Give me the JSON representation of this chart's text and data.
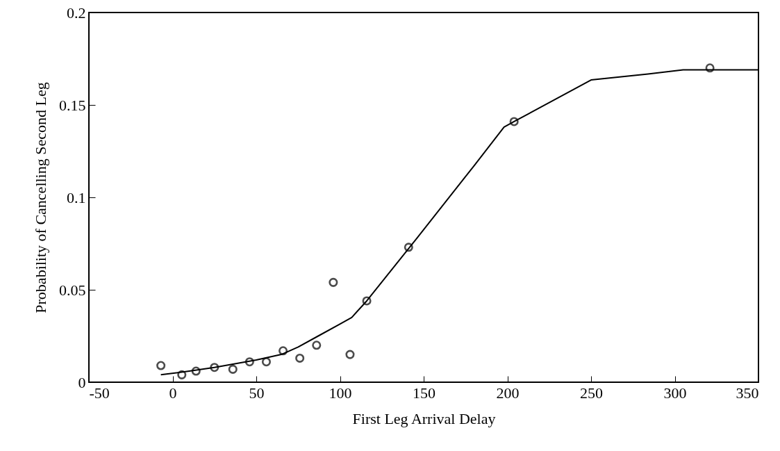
{
  "chart_data": {
    "type": "scatter",
    "xlabel": "First Leg Arrival Delay",
    "ylabel": "Probability of Cancelling Second Leg",
    "xlim": [
      -50,
      350
    ],
    "xticks": [
      -50,
      0,
      50,
      100,
      150,
      200,
      250,
      300,
      350
    ],
    "ylim": [
      0,
      0.2
    ],
    "yticks": [
      0,
      0.05,
      0.1,
      0.15,
      0.2
    ],
    "grid": false,
    "series": [
      {
        "color": "#000000",
        "marker": "circle",
        "x": [
          -7,
          5.5,
          14,
          25,
          36,
          46,
          56,
          66,
          76,
          86,
          96,
          106,
          116,
          141,
          204,
          321
        ],
        "values": [
          0.009,
          0.004,
          0.006,
          0.008,
          0.007,
          0.011,
          0.011,
          0.017,
          0.013,
          0.02,
          0.054,
          0.015,
          0.044,
          0.073,
          0.141,
          0.17
        ]
      },
      {
        "type": "line",
        "color": "#000000",
        "marker": "none",
        "line_style": "solid",
        "x": [
          -7,
          10,
          25,
          50,
          65,
          75,
          87,
          99,
          107,
          116,
          146,
          180,
          198,
          204,
          250,
          284,
          305,
          350
        ],
        "values": [
          0.004,
          0.006,
          0.008,
          0.012,
          0.015,
          0.019,
          0.025,
          0.031,
          0.035,
          0.044,
          0.078,
          0.117,
          0.138,
          0.141,
          0.1635,
          0.1667,
          0.169,
          0.169
        ]
      }
    ]
  }
}
